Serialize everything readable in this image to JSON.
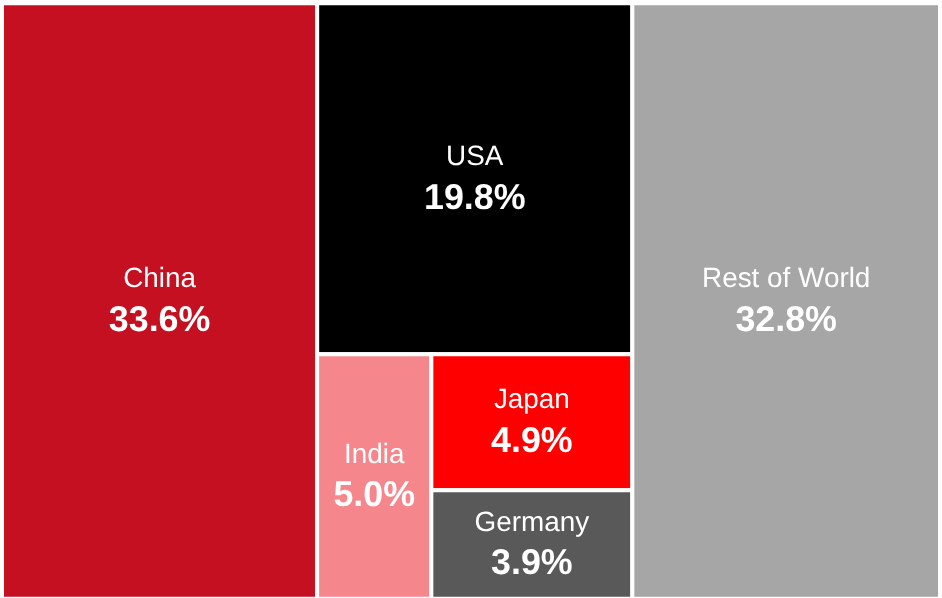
{
  "chart_data": {
    "type": "other",
    "categories": [
      "China",
      "USA",
      "India",
      "Japan",
      "Germany",
      "Rest of World"
    ],
    "values": [
      33.6,
      19.8,
      5.0,
      4.9,
      3.9,
      32.8
    ],
    "value_labels": [
      "33.6%",
      "19.8%",
      "5.0%",
      "4.9%",
      "3.9%",
      "32.8%"
    ],
    "colors": [
      "#c41020",
      "#000000",
      "#f4868c",
      "#fe0000",
      "#595959",
      "#a6a6a6"
    ]
  }
}
